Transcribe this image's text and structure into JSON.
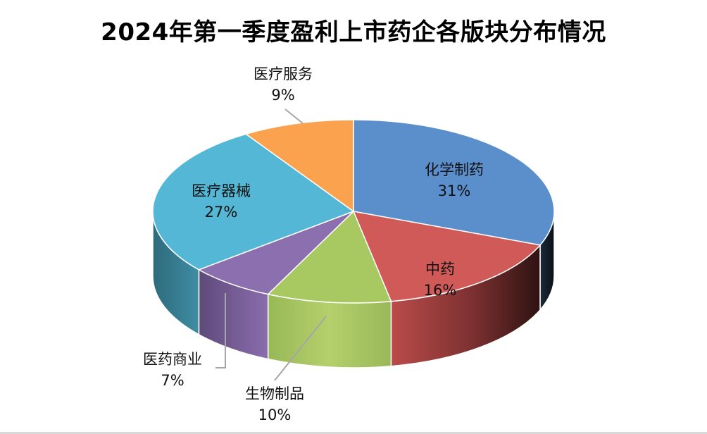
{
  "chart_data": {
    "type": "pie",
    "variant": "3d-pie",
    "title": "2024年第一季度盈利上市药企各版块分布情况",
    "categories": [
      "化学制药",
      "中药",
      "生物制品",
      "医药商业",
      "医疗器械",
      "医疗服务"
    ],
    "values": [
      31,
      16,
      10,
      7,
      27,
      9
    ],
    "unit": "%",
    "colors": [
      "#5B8FCC",
      "#D05A58",
      "#A8C862",
      "#8B6FAE",
      "#55B7D6",
      "#FBA24E"
    ],
    "labels": [
      {
        "name": "化学制药",
        "pct": "31%"
      },
      {
        "name": "中药",
        "pct": "16%"
      },
      {
        "name": "生物制品",
        "pct": "10%"
      },
      {
        "name": "医药商业",
        "pct": "7%"
      },
      {
        "name": "医疗器械",
        "pct": "27%"
      },
      {
        "name": "医疗服务",
        "pct": "9%"
      }
    ],
    "legend": "none (data labels with leader lines)"
  }
}
